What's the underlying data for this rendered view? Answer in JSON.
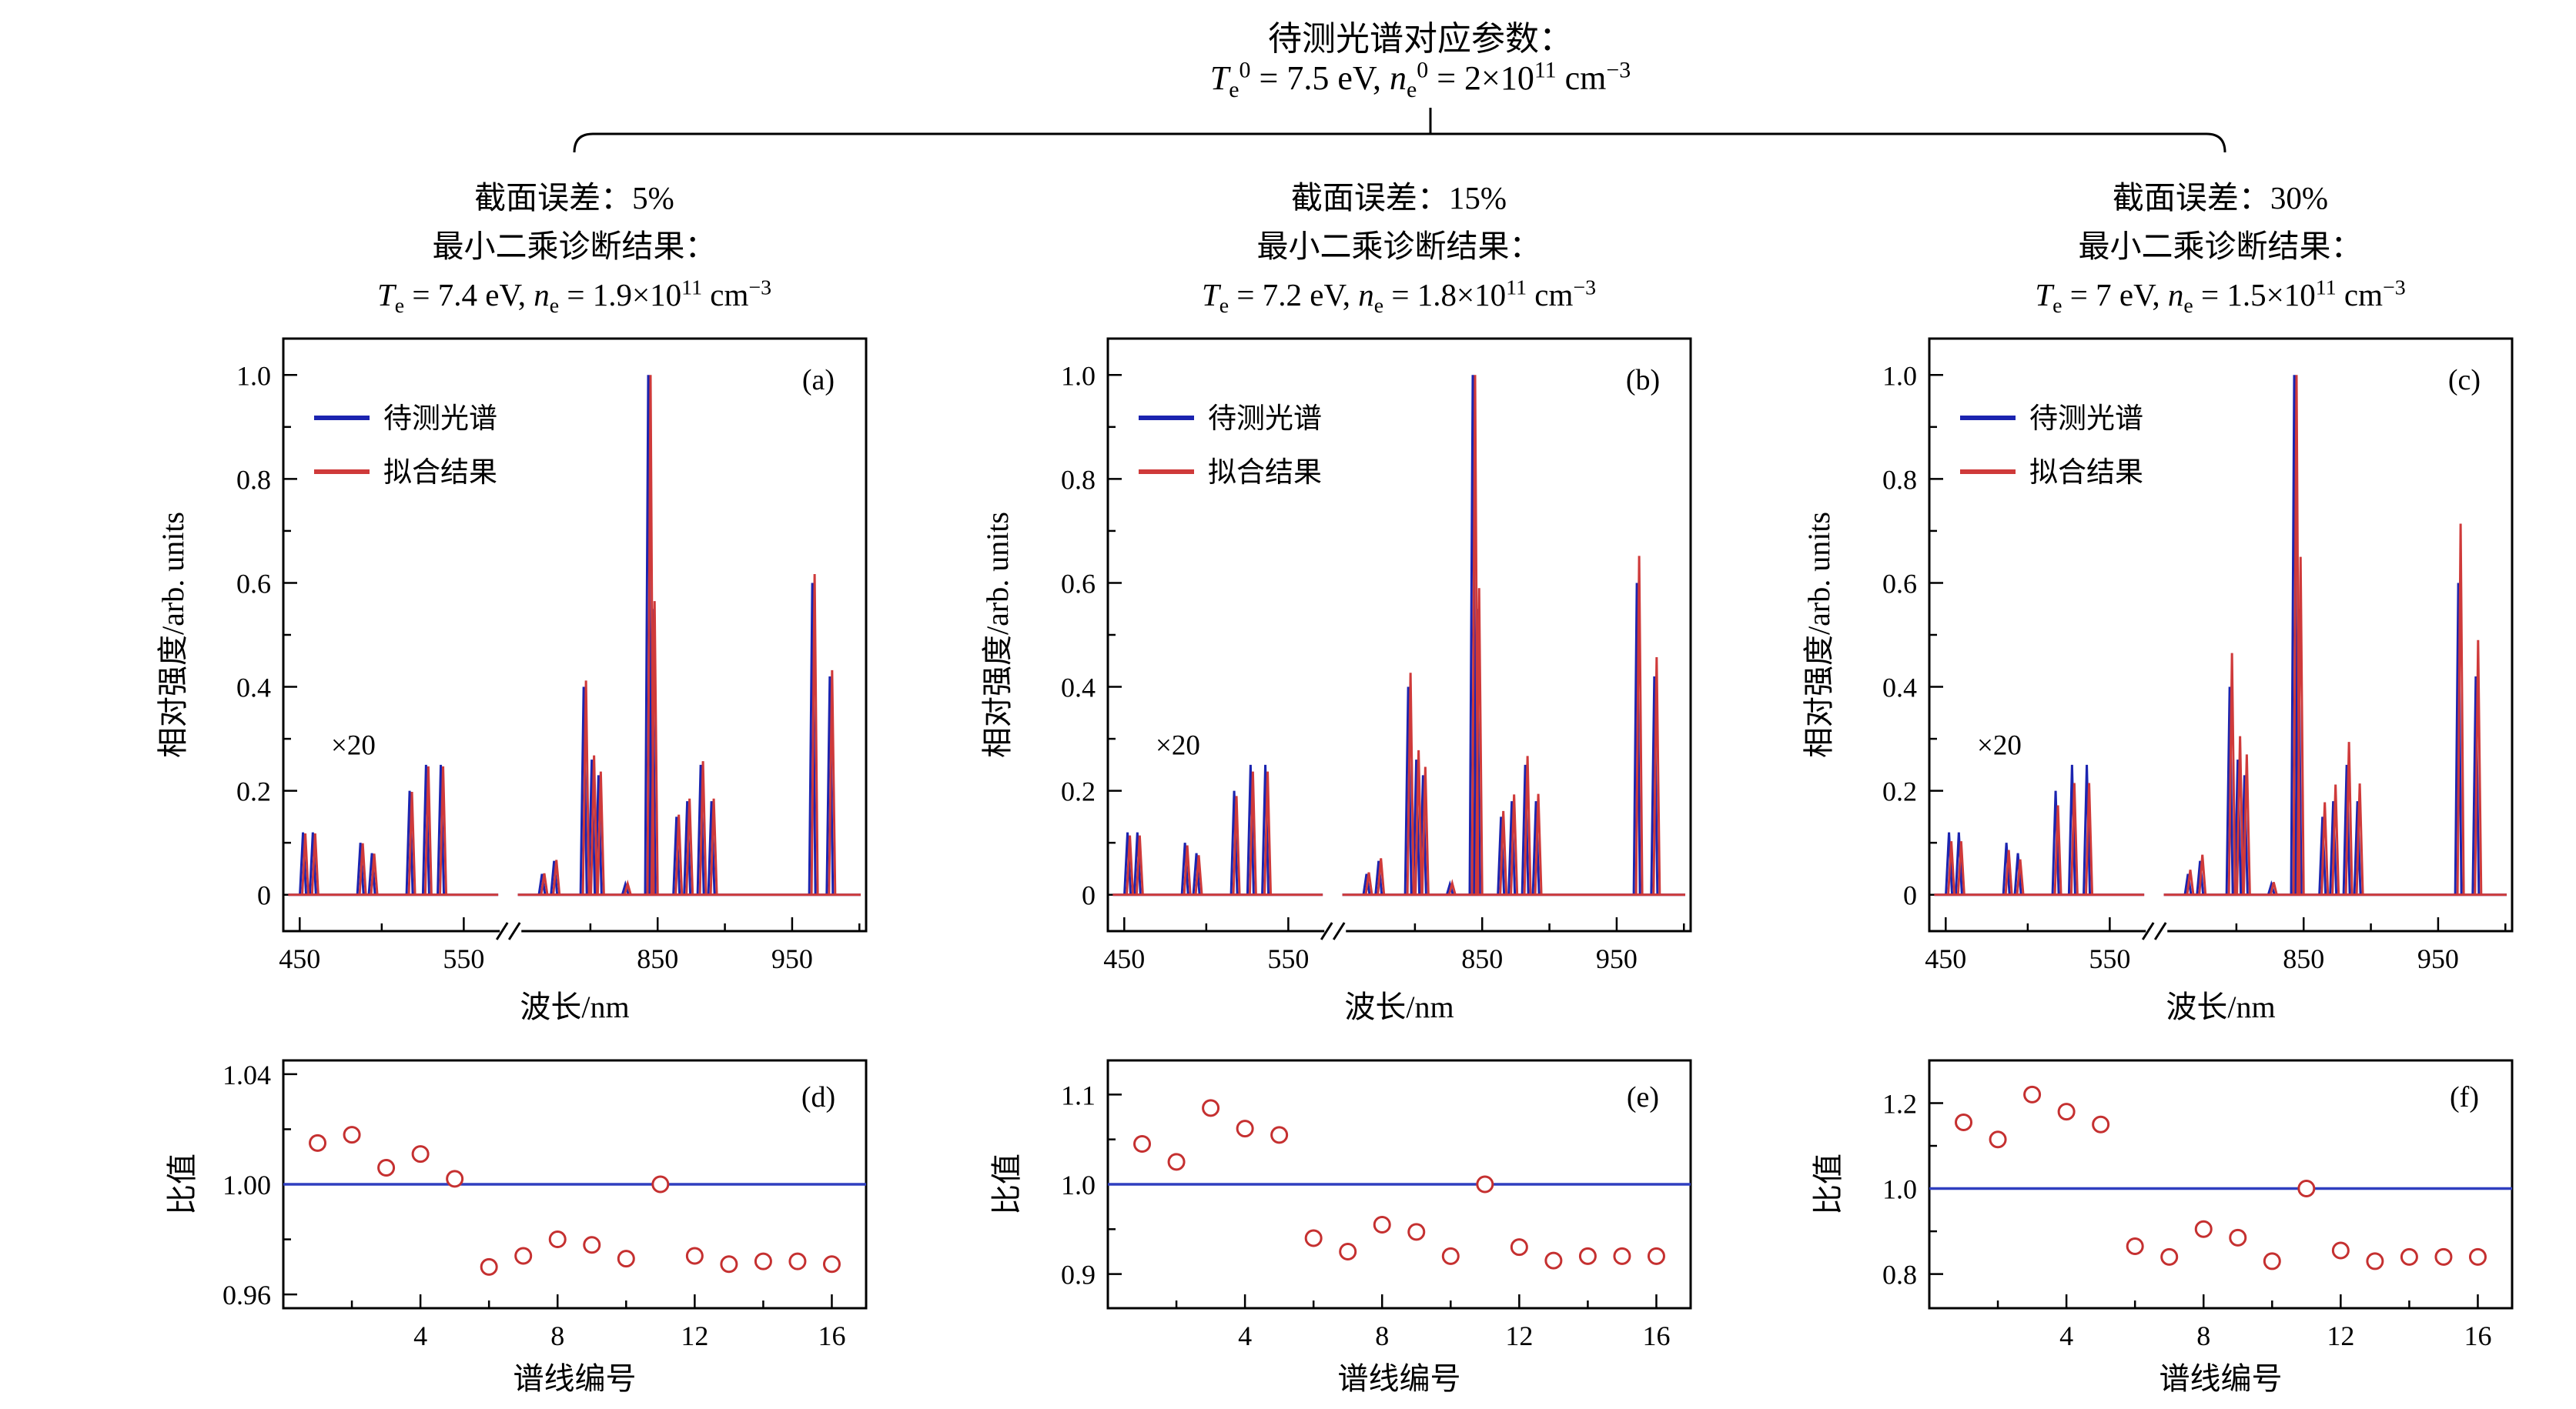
{
  "header": {
    "title": "待测光谱对应参数：",
    "formula": "*T*_{e}^{0} = 7.5 eV, *n*_{e}^{0} = 2×10^{11} cm^{−3}"
  },
  "columns": [
    {
      "error_line": "截面误差：5%",
      "method_line": "最小二乘诊断结果：",
      "result_formula": "*T*_{e} = 7.4 eV, *n*_{e} = 1.9×10^{11} cm^{−3}"
    },
    {
      "error_line": "截面误差：15%",
      "method_line": "最小二乘诊断结果：",
      "result_formula": "*T*_{e} = 7.2 eV, *n*_{e} = 1.8×10^{11} cm^{−3}"
    },
    {
      "error_line": "截面误差：30%",
      "method_line": "最小二乘诊断结果：",
      "result_formula": "*T*_{e} = 7 eV, *n*_{e} = 1.5×10^{11} cm^{−3}"
    }
  ],
  "colors": {
    "blue": "#1b24b0",
    "red": "#cf3a3a",
    "axis": "#000000",
    "ratio_line": "#2f3fbf",
    "marker": "#c53030"
  },
  "chart_data": [
    {
      "id": "a",
      "type": "line",
      "panel_label": "(a)",
      "legend": [
        "待测光谱",
        "拟合结果"
      ],
      "annotation": "×20",
      "xlabel": "波长/nm",
      "ylabel": "相对强度/arb. units",
      "ylim": [
        -0.07,
        1.07
      ],
      "x_break": {
        "seg1": [
          440,
          575
        ],
        "seg2": [
          745,
          1005
        ],
        "seg1_frac": [
          0.0,
          0.38
        ],
        "seg2_frac": [
          0.4,
          1.0
        ],
        "break_frac": 0.39
      },
      "xticks": [
        {
          "v": 450,
          "label": "450"
        },
        {
          "v": 550,
          "label": "550"
        },
        {
          "v": 850,
          "label": "850"
        },
        {
          "v": 950,
          "label": "950"
        }
      ],
      "xminor": [
        500,
        800,
        900,
        1000
      ],
      "yticks": [
        {
          "v": 0,
          "label": "0"
        },
        {
          "v": 0.2,
          "label": "0.2"
        },
        {
          "v": 0.4,
          "label": "0.4"
        },
        {
          "v": 0.6,
          "label": "0.6"
        },
        {
          "v": 0.8,
          "label": "0.8"
        },
        {
          "v": 1.0,
          "label": "1.0"
        }
      ],
      "yminor": [
        0.1,
        0.3,
        0.5,
        0.7,
        0.9
      ],
      "wl": [
        452,
        458,
        487,
        494,
        517,
        527,
        536,
        764,
        773,
        795,
        801,
        806,
        826,
        843,
        846,
        864,
        872,
        882,
        890,
        965,
        978
      ],
      "blue": [
        0.12,
        0.12,
        0.1,
        0.08,
        0.2,
        0.25,
        0.25,
        0.04,
        0.065,
        0.4,
        0.26,
        0.23,
        0.02,
        1.0,
        0.55,
        0.15,
        0.18,
        0.25,
        0.18,
        0.6,
        0.42
      ],
      "red": [
        0.118,
        0.118,
        0.099,
        0.079,
        0.198,
        0.247,
        0.247,
        0.041,
        0.067,
        0.412,
        0.268,
        0.237,
        0.021,
        1.0,
        0.565,
        0.154,
        0.185,
        0.257,
        0.185,
        0.617,
        0.432
      ]
    },
    {
      "id": "b",
      "type": "line",
      "panel_label": "(b)",
      "legend": [
        "待测光谱",
        "拟合结果"
      ],
      "annotation": "×20",
      "xlabel": "波长/nm",
      "ylabel": "相对强度/arb. units",
      "ylim": [
        -0.07,
        1.07
      ],
      "x_break": {
        "seg1": [
          440,
          575
        ],
        "seg2": [
          745,
          1005
        ],
        "seg1_frac": [
          0.0,
          0.38
        ],
        "seg2_frac": [
          0.4,
          1.0
        ],
        "break_frac": 0.39
      },
      "xticks": [
        {
          "v": 450,
          "label": "450"
        },
        {
          "v": 550,
          "label": "550"
        },
        {
          "v": 850,
          "label": "850"
        },
        {
          "v": 950,
          "label": "950"
        }
      ],
      "xminor": [
        500,
        800,
        900,
        1000
      ],
      "yticks": [
        {
          "v": 0,
          "label": "0"
        },
        {
          "v": 0.2,
          "label": "0.2"
        },
        {
          "v": 0.4,
          "label": "0.4"
        },
        {
          "v": 0.6,
          "label": "0.6"
        },
        {
          "v": 0.8,
          "label": "0.8"
        },
        {
          "v": 1.0,
          "label": "1.0"
        }
      ],
      "yminor": [
        0.1,
        0.3,
        0.5,
        0.7,
        0.9
      ],
      "wl": [
        452,
        458,
        487,
        494,
        517,
        527,
        536,
        764,
        773,
        795,
        801,
        806,
        826,
        843,
        846,
        864,
        872,
        882,
        890,
        965,
        978
      ],
      "blue": [
        0.12,
        0.12,
        0.1,
        0.08,
        0.2,
        0.25,
        0.25,
        0.04,
        0.065,
        0.4,
        0.26,
        0.23,
        0.02,
        1.0,
        0.55,
        0.15,
        0.18,
        0.25,
        0.18,
        0.6,
        0.42
      ],
      "red": [
        0.114,
        0.114,
        0.095,
        0.076,
        0.19,
        0.237,
        0.237,
        0.043,
        0.07,
        0.427,
        0.278,
        0.246,
        0.022,
        1.0,
        0.59,
        0.161,
        0.193,
        0.267,
        0.194,
        0.652,
        0.457
      ]
    },
    {
      "id": "c",
      "type": "line",
      "panel_label": "(c)",
      "legend": [
        "待测光谱",
        "拟合结果"
      ],
      "annotation": "×20",
      "xlabel": "波长/nm",
      "ylabel": "相对强度/arb. units",
      "ylim": [
        -0.07,
        1.07
      ],
      "x_break": {
        "seg1": [
          440,
          575
        ],
        "seg2": [
          745,
          1005
        ],
        "seg1_frac": [
          0.0,
          0.38
        ],
        "seg2_frac": [
          0.4,
          1.0
        ],
        "break_frac": 0.39
      },
      "xticks": [
        {
          "v": 450,
          "label": "450"
        },
        {
          "v": 550,
          "label": "550"
        },
        {
          "v": 850,
          "label": "850"
        },
        {
          "v": 950,
          "label": "950"
        }
      ],
      "xminor": [
        500,
        800,
        900,
        1000
      ],
      "yticks": [
        {
          "v": 0,
          "label": "0"
        },
        {
          "v": 0.2,
          "label": "0.2"
        },
        {
          "v": 0.4,
          "label": "0.4"
        },
        {
          "v": 0.6,
          "label": "0.6"
        },
        {
          "v": 0.8,
          "label": "0.8"
        },
        {
          "v": 1.0,
          "label": "1.0"
        }
      ],
      "yminor": [
        0.1,
        0.3,
        0.5,
        0.7,
        0.9
      ],
      "wl": [
        452,
        458,
        487,
        494,
        517,
        527,
        536,
        764,
        773,
        795,
        801,
        806,
        826,
        843,
        846,
        864,
        872,
        882,
        890,
        965,
        978
      ],
      "blue": [
        0.12,
        0.12,
        0.1,
        0.08,
        0.2,
        0.25,
        0.25,
        0.04,
        0.065,
        0.4,
        0.26,
        0.23,
        0.02,
        1.0,
        0.55,
        0.15,
        0.18,
        0.25,
        0.18,
        0.6,
        0.42
      ],
      "red": [
        0.103,
        0.103,
        0.086,
        0.068,
        0.172,
        0.215,
        0.215,
        0.048,
        0.077,
        0.465,
        0.305,
        0.27,
        0.024,
        1.0,
        0.65,
        0.178,
        0.212,
        0.294,
        0.214,
        0.714,
        0.49
      ]
    },
    {
      "id": "d",
      "type": "scatter",
      "panel_label": "(d)",
      "xlabel": "谱线编号",
      "ylabel": "比值",
      "xlim": [
        0,
        17
      ],
      "ylim": [
        0.955,
        1.045
      ],
      "hline": 1.0,
      "xticks": [
        {
          "v": 4,
          "label": "4"
        },
        {
          "v": 8,
          "label": "8"
        },
        {
          "v": 12,
          "label": "12"
        },
        {
          "v": 16,
          "label": "16"
        }
      ],
      "xminor": [
        2,
        6,
        10,
        14
      ],
      "yticks": [
        {
          "v": 0.96,
          "label": "0.96"
        },
        {
          "v": 1.0,
          "label": "1.00"
        },
        {
          "v": 1.04,
          "label": "1.04"
        }
      ],
      "yminor": [
        0.98,
        1.02
      ],
      "x": [
        1,
        2,
        3,
        4,
        5,
        6,
        7,
        8,
        9,
        10,
        11,
        12,
        13,
        14,
        15,
        16
      ],
      "values": [
        1.015,
        1.018,
        1.006,
        1.011,
        1.002,
        0.97,
        0.974,
        0.98,
        0.978,
        0.973,
        1.0,
        0.974,
        0.971,
        0.972,
        0.972,
        0.971
      ]
    },
    {
      "id": "e",
      "type": "scatter",
      "panel_label": "(e)",
      "xlabel": "谱线编号",
      "ylabel": "比值",
      "xlim": [
        0,
        17
      ],
      "ylim": [
        0.862,
        1.138
      ],
      "hline": 1.0,
      "xticks": [
        {
          "v": 4,
          "label": "4"
        },
        {
          "v": 8,
          "label": "8"
        },
        {
          "v": 12,
          "label": "12"
        },
        {
          "v": 16,
          "label": "16"
        }
      ],
      "xminor": [
        2,
        6,
        10,
        14
      ],
      "yticks": [
        {
          "v": 0.9,
          "label": "0.9"
        },
        {
          "v": 1.0,
          "label": "1.0"
        },
        {
          "v": 1.1,
          "label": "1.1"
        }
      ],
      "yminor": [
        0.95,
        1.05
      ],
      "x": [
        1,
        2,
        3,
        4,
        5,
        6,
        7,
        8,
        9,
        10,
        11,
        12,
        13,
        14,
        15,
        16
      ],
      "values": [
        1.045,
        1.025,
        1.085,
        1.062,
        1.055,
        0.94,
        0.925,
        0.955,
        0.947,
        0.92,
        1.0,
        0.93,
        0.915,
        0.92,
        0.92,
        0.92
      ]
    },
    {
      "id": "f",
      "type": "scatter",
      "panel_label": "(f)",
      "xlabel": "谱线编号",
      "ylabel": "比值",
      "xlim": [
        0,
        17
      ],
      "ylim": [
        0.72,
        1.3
      ],
      "hline": 1.0,
      "xticks": [
        {
          "v": 4,
          "label": "4"
        },
        {
          "v": 8,
          "label": "8"
        },
        {
          "v": 12,
          "label": "12"
        },
        {
          "v": 16,
          "label": "16"
        }
      ],
      "xminor": [
        2,
        6,
        10,
        14
      ],
      "yticks": [
        {
          "v": 0.8,
          "label": "0.8"
        },
        {
          "v": 1.0,
          "label": "1.0"
        },
        {
          "v": 1.2,
          "label": "1.2"
        }
      ],
      "yminor": [
        0.9,
        1.1
      ],
      "x": [
        1,
        2,
        3,
        4,
        5,
        6,
        7,
        8,
        9,
        10,
        11,
        12,
        13,
        14,
        15,
        16
      ],
      "values": [
        1.155,
        1.115,
        1.22,
        1.18,
        1.15,
        0.865,
        0.84,
        0.905,
        0.885,
        0.83,
        1.0,
        0.855,
        0.83,
        0.84,
        0.84,
        0.84
      ]
    }
  ]
}
